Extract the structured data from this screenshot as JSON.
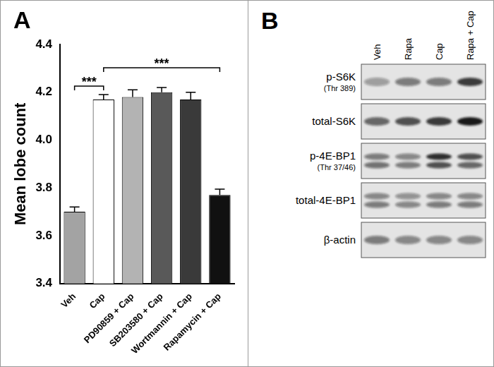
{
  "panel_labels": [
    "A",
    "B"
  ],
  "chart_data": {
    "type": "bar",
    "categories": [
      "Veh",
      "Cap",
      "PD90859 + Cap",
      "SB203580 + Cap",
      "Wortmannin + Cap",
      "Rapamycin + Cap"
    ],
    "values": [
      3.7,
      4.17,
      4.18,
      4.2,
      4.17,
      3.77
    ],
    "errors": [
      0.02,
      0.02,
      0.03,
      0.02,
      0.03,
      0.025
    ],
    "colors": [
      "#a3a3a3",
      "#ffffff",
      "#b3b3b3",
      "#595959",
      "#3a3a3a",
      "#111111"
    ],
    "y_label": "Mean lobe count",
    "ylim": [
      3.4,
      4.4
    ],
    "yticks": [
      3.4,
      3.6,
      3.8,
      {
        "value": 4,
        "label": "4.0"
      },
      4.2,
      4.4
    ],
    "grid": false,
    "significance": [
      {
        "from": 0,
        "to": 1,
        "label": "***"
      },
      {
        "from": 1,
        "to": 5,
        "label": "***"
      }
    ]
  },
  "blot": {
    "lanes": [
      "Veh",
      "Rapa",
      "Cap",
      "Rapa + Cap"
    ],
    "rows": [
      {
        "label": "p-S6K",
        "sublabel": "(Thr 389)",
        "intensity": [
          [
            0.35,
            0.5,
            0.5,
            0.8
          ]
        ]
      },
      {
        "label": "total-S6K",
        "intensity": [
          [
            0.6,
            0.7,
            0.8,
            0.95
          ]
        ]
      },
      {
        "label": "p-4E-BP1",
        "sublabel": "(Thr 37/46)",
        "intensity": [
          [
            0.5,
            0.45,
            0.85,
            0.7
          ],
          [
            0.55,
            0.5,
            0.7,
            0.6
          ]
        ]
      },
      {
        "label": "total-4E-BP1",
        "intensity": [
          [
            0.45,
            0.4,
            0.45,
            0.45
          ],
          [
            0.5,
            0.45,
            0.5,
            0.5
          ]
        ]
      },
      {
        "label": "β-actin",
        "intensity": [
          [
            0.5,
            0.45,
            0.45,
            0.45
          ]
        ]
      }
    ]
  }
}
